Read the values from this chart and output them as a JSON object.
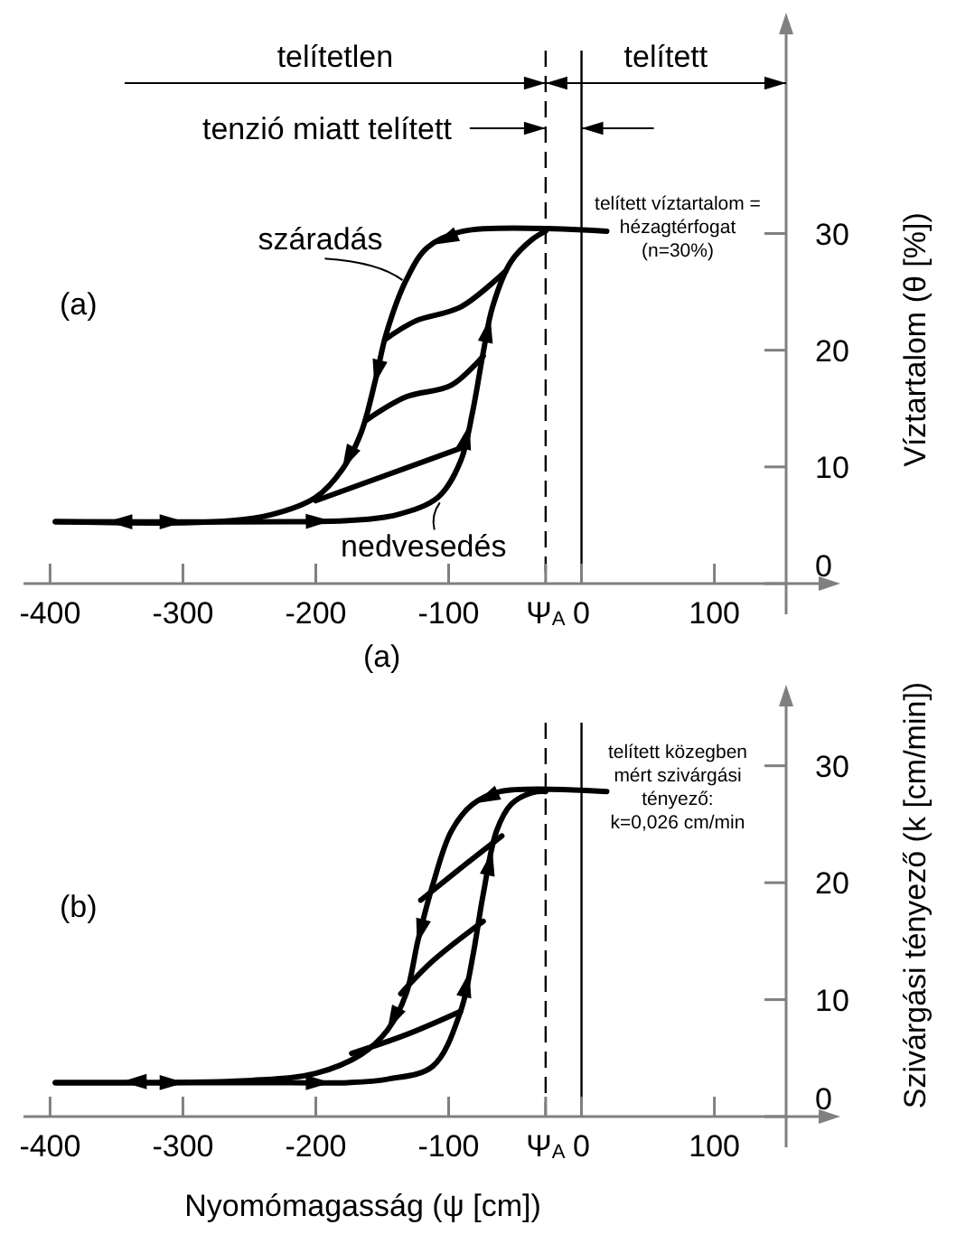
{
  "chart_data": [
    {
      "type": "line",
      "ylabel": "Víztartalom (θ [%])",
      "xlim": [
        -420,
        154
      ],
      "ylim": [
        0,
        48
      ],
      "xticks": [
        -400,
        -300,
        -200,
        -100,
        {
          "value": -27,
          "label": "Ψ$_{A}$"
        },
        0,
        100
      ],
      "yticks": [
        0,
        10,
        20,
        30
      ],
      "annotations": [
        "telítetlen",
        "telített",
        "tenzió miatt telített",
        "(a)",
        "telített víztartalom =\nhézagtérfogat\n(n=30%)",
        "(a)"
      ],
      "ref_lines": [
        {
          "axis": "x",
          "value": -27,
          "line_style": "dashed",
          "color": "#000000"
        },
        {
          "axis": "x",
          "value": 0,
          "color": "#000000"
        }
      ],
      "series": [
        {
          "name": "száradás",
          "color": "#000000",
          "x": [
            19,
            -89,
            -116,
            -132,
            -147,
            -155,
            -166,
            -180,
            -200,
            -234,
            -275,
            -396
          ],
          "values": [
            30.2,
            30.2,
            28.8,
            26,
            21.4,
            17.5,
            12.9,
            9.8,
            7.4,
            5.9,
            5.3,
            5.3
          ]
        },
        {
          "name": "nedvesedés",
          "color": "#000000",
          "x": [
            -396,
            -220,
            -176,
            -139,
            -108,
            -91,
            -82,
            -74,
            -67,
            -53,
            -37,
            -27
          ],
          "values": [
            5.3,
            5.3,
            5.4,
            5.9,
            7.4,
            10.5,
            14.7,
            19.8,
            23.7,
            27.6,
            29.5,
            30.2
          ]
        },
        {
          "color": "#000000",
          "x": [
            -57,
            -91,
            -125,
            -148
          ],
          "values": [
            26.8,
            23.7,
            22.5,
            20.9
          ]
        },
        {
          "color": "#000000",
          "x": [
            -74,
            -98,
            -132,
            -162
          ],
          "values": [
            19.5,
            17,
            16,
            14
          ]
        },
        {
          "color": "#000000",
          "x": [
            -91,
            -200
          ],
          "values": [
            11.6,
            7.1
          ]
        }
      ]
    },
    {
      "type": "line",
      "xlabel": "Nyomómagasság (ψ [cm])",
      "ylabel": "Szivárgási tényező (k [cm/min])",
      "xlim": [
        -420,
        154
      ],
      "ylim": [
        0,
        36
      ],
      "xticks": [
        -400,
        -300,
        -200,
        -100,
        {
          "value": -27,
          "label": "Ψ$_{A}$"
        },
        0,
        100
      ],
      "yticks": [
        0,
        10,
        20,
        30
      ],
      "annotations": [
        "(b)",
        "telített közegben\nmért szivárgási\ntényező:\nk=0,026 cm/min"
      ],
      "ref_lines": [
        {
          "axis": "x",
          "value": -27,
          "line_style": "dashed",
          "color": "#000000"
        },
        {
          "axis": "x",
          "value": 0,
          "color": "#000000"
        }
      ],
      "series": [
        {
          "color": "#000000",
          "x": [
            19,
            -61,
            -82,
            -98,
            -112,
            -123,
            -132,
            -146,
            -166,
            -200,
            -248,
            -396
          ],
          "values": [
            27.8,
            27.8,
            26.7,
            24.4,
            19.8,
            15.1,
            10.5,
            7.4,
            5.3,
            3.7,
            3.1,
            2.9
          ]
        },
        {
          "color": "#000000",
          "x": [
            -396,
            -220,
            -176,
            -146,
            -112,
            -91,
            -82,
            -74,
            -64,
            -53,
            -37,
            -27
          ],
          "values": [
            2.9,
            2.9,
            2.9,
            3.2,
            4.3,
            9,
            13.6,
            19,
            24.4,
            26.7,
            27.7,
            27.8
          ]
        },
        {
          "color": "#000000",
          "x": [
            -60,
            -87,
            -121
          ],
          "values": [
            24,
            21.6,
            18.5
          ]
        },
        {
          "color": "#000000",
          "x": [
            -74,
            -112,
            -136
          ],
          "values": [
            16.7,
            13.3,
            10.5
          ]
        },
        {
          "color": "#000000",
          "x": [
            -91,
            -132,
            -173
          ],
          "values": [
            9,
            7,
            5.4
          ]
        }
      ]
    }
  ]
}
